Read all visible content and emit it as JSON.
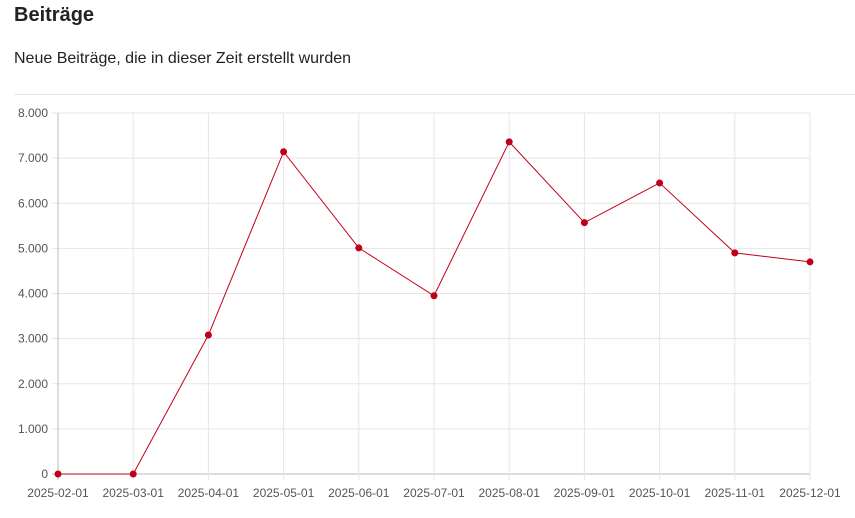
{
  "header": {
    "title": "Beiträge",
    "subtitle": "Neue Beiträge, die in dieser Zeit erstellt wurden"
  },
  "chart_data": {
    "type": "line",
    "title": "",
    "xlabel": "",
    "ylabel": "",
    "categories": [
      "2025-02-01",
      "2025-03-01",
      "2025-04-01",
      "2025-05-01",
      "2025-06-01",
      "2025-07-01",
      "2025-08-01",
      "2025-09-01",
      "2025-10-01",
      "2025-11-01",
      "2025-12-01"
    ],
    "series": [
      {
        "values": [
          0,
          0,
          3080,
          7140,
          5010,
          3950,
          7360,
          5570,
          6450,
          4900,
          4700
        ]
      }
    ],
    "ylim": [
      0,
      8000
    ],
    "yticks": [
      "0",
      "1.000",
      "2.000",
      "3.000",
      "4.000",
      "5.000",
      "6.000",
      "7.000",
      "8.000"
    ],
    "grid": true,
    "color": "#c0001a"
  }
}
